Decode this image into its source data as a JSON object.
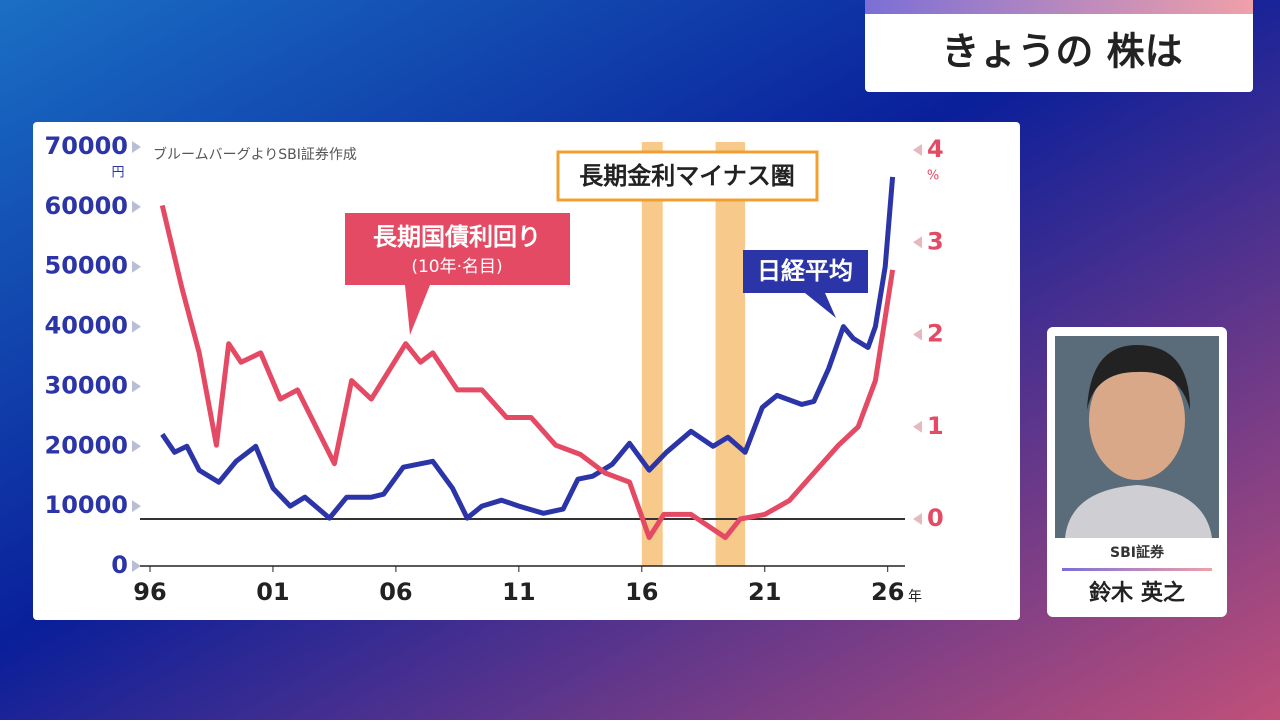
{
  "header": {
    "title": "きょうの 株は"
  },
  "guest": {
    "company": "SBI証券",
    "name": "鈴木 英之"
  },
  "chart_data": {
    "type": "line",
    "source": "ブルームバーグよりSBI証券作成",
    "y_unit": "円",
    "y2_unit": "%",
    "x_unit": "年",
    "xlim": [
      1996,
      2026.5
    ],
    "xticks": [
      {
        "value": 1996,
        "label": "96"
      },
      {
        "value": 2001,
        "label": "01"
      },
      {
        "value": 2006,
        "label": "06"
      },
      {
        "value": 2011,
        "label": "11"
      },
      {
        "value": 2016,
        "label": "16"
      },
      {
        "value": 2021,
        "label": "21"
      },
      {
        "value": 2026,
        "label": "26"
      }
    ],
    "ylim": [
      0,
      70000
    ],
    "yticks": [
      0,
      10000,
      20000,
      30000,
      40000,
      50000,
      60000,
      70000
    ],
    "y2lim": [
      0,
      4
    ],
    "y2ticks": [
      0,
      1,
      2,
      3,
      4
    ],
    "bands": {
      "label": "長期金利マイナス圏",
      "color": "#f7c98a",
      "ranges": [
        [
          2016,
          2016.85
        ],
        [
          2019,
          2020.2
        ]
      ]
    },
    "series": [
      {
        "name": "日経平均",
        "color": "#2b35a8",
        "x": [
          1996.5,
          1997,
          1997.5,
          1998,
          1998.8,
          1999.5,
          2000.3,
          2001,
          2001.7,
          2002.3,
          2003.3,
          2004,
          2005,
          2005.5,
          2006.3,
          2007.5,
          2008.3,
          2008.9,
          2009.5,
          2010.3,
          2011,
          2012,
          2012.8,
          2013.4,
          2014,
          2014.8,
          2015.5,
          2016.3,
          2017,
          2018,
          2018.9,
          2019.5,
          2020.2,
          2020.9,
          2021.5,
          2022.5,
          2023,
          2023.6,
          2024.2,
          2024.6,
          2025.2,
          2025.5,
          2025.9,
          2026.2
        ],
        "values": [
          22000,
          19000,
          20000,
          16000,
          14000,
          17500,
          20000,
          13000,
          10000,
          11500,
          8000,
          11500,
          11500,
          12000,
          16500,
          17500,
          13000,
          8000,
          10000,
          11000,
          10000,
          8800,
          9500,
          14500,
          15000,
          17000,
          20500,
          16000,
          19000,
          22500,
          20000,
          21500,
          19000,
          26500,
          28500,
          27000,
          27500,
          33000,
          40000,
          38000,
          36500,
          40000,
          50000,
          65000
        ]
      },
      {
        "name": "長期国債利回り",
        "subname": "(10年·名目)",
        "color": "#e54a64",
        "axis": "y2",
        "x": [
          1996.5,
          1997.3,
          1998,
          1998.7,
          1999.2,
          1999.7,
          2000.5,
          2001.3,
          2002,
          2003.5,
          2004.2,
          2005,
          2006.4,
          2007,
          2007.5,
          2008.5,
          2009.5,
          2010.5,
          2011.5,
          2012.5,
          2013.5,
          2014.5,
          2015.5,
          2016.3,
          2016.9,
          2018,
          2019.4,
          2020,
          2021,
          2022,
          2023,
          2024,
          2024.8,
          2025.5,
          2026.2
        ],
        "values": [
          3.4,
          2.5,
          1.8,
          0.8,
          1.9,
          1.7,
          1.8,
          1.3,
          1.4,
          0.6,
          1.5,
          1.3,
          1.9,
          1.7,
          1.8,
          1.4,
          1.4,
          1.1,
          1.1,
          0.8,
          0.7,
          0.5,
          0.4,
          -0.2,
          0.05,
          0.05,
          -0.2,
          0.0,
          0.05,
          0.2,
          0.5,
          0.8,
          1.0,
          1.5,
          2.7
        ]
      }
    ]
  }
}
